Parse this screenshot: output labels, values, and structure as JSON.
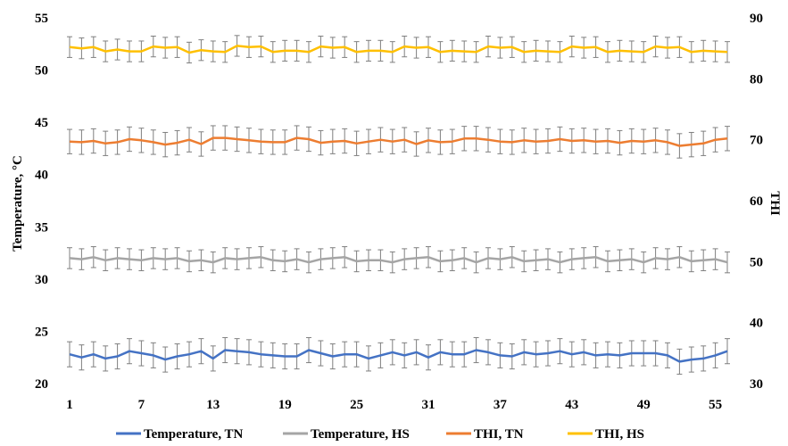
{
  "chart_data": {
    "type": "line",
    "title": "",
    "xlabel": "",
    "ylabel": "Temperature, °C",
    "y2label": "THI",
    "ylim": [
      20,
      55
    ],
    "y2lim": [
      30,
      90
    ],
    "yticks": [
      "20",
      "25",
      "30",
      "35",
      "40",
      "45",
      "50",
      "55"
    ],
    "y2ticks": [
      "30",
      "40",
      "50",
      "60",
      "70",
      "80",
      "90"
    ],
    "xticks": [
      "1",
      "7",
      "13",
      "19",
      "25",
      "31",
      "37",
      "43",
      "49",
      "55"
    ],
    "x": [
      1,
      2,
      3,
      4,
      5,
      6,
      7,
      8,
      9,
      10,
      11,
      12,
      13,
      14,
      15,
      16,
      17,
      18,
      19,
      20,
      21,
      22,
      23,
      24,
      25,
      26,
      27,
      28,
      29,
      30,
      31,
      32,
      33,
      34,
      35,
      36,
      37,
      38,
      39,
      40,
      41,
      42,
      43,
      44,
      45,
      46,
      47,
      48,
      49,
      50,
      51,
      52,
      53,
      54,
      55,
      56
    ],
    "grid": false,
    "legend_position": "bottom",
    "series": [
      {
        "name": "Temperature, TN",
        "axis": "left",
        "color": "#4472C4",
        "error": 1.2,
        "values": [
          22.8,
          22.5,
          22.8,
          22.4,
          22.6,
          23.1,
          22.9,
          22.7,
          22.3,
          22.6,
          22.8,
          23.1,
          22.4,
          23.2,
          23.1,
          23.0,
          22.8,
          22.7,
          22.6,
          22.6,
          23.2,
          22.9,
          22.6,
          22.8,
          22.8,
          22.4,
          22.7,
          23.0,
          22.7,
          23.0,
          22.5,
          23.0,
          22.8,
          22.8,
          23.2,
          23.0,
          22.7,
          22.6,
          23.0,
          22.8,
          22.9,
          23.1,
          22.8,
          23.0,
          22.7,
          22.8,
          22.7,
          22.9,
          22.9,
          22.9,
          22.7,
          22.1,
          22.3,
          22.4,
          22.7,
          23.1
        ]
      },
      {
        "name": "Temperature, HS",
        "axis": "left",
        "color": "#A5A5A5",
        "error": 1.0,
        "values": [
          32.0,
          31.9,
          32.1,
          31.8,
          32.0,
          31.9,
          31.8,
          32.0,
          31.9,
          32.0,
          31.7,
          31.8,
          31.6,
          32.0,
          31.9,
          32.0,
          32.1,
          31.8,
          31.7,
          31.9,
          31.6,
          31.9,
          32.0,
          32.1,
          31.7,
          31.8,
          31.8,
          31.6,
          31.9,
          32.0,
          32.1,
          31.7,
          31.8,
          32.0,
          31.6,
          32.0,
          31.9,
          32.1,
          31.7,
          31.8,
          31.9,
          31.6,
          31.9,
          32.0,
          32.1,
          31.7,
          31.8,
          31.9,
          31.6,
          32.0,
          31.9,
          32.1,
          31.7,
          31.8,
          31.9,
          31.6
        ]
      },
      {
        "name": "THI, TN",
        "axis": "right",
        "color": "#ED7D31",
        "error": 2.0,
        "values": [
          69.7,
          69.6,
          69.8,
          69.4,
          69.6,
          70.1,
          69.9,
          69.6,
          69.2,
          69.5,
          70.0,
          69.3,
          70.3,
          70.3,
          70.1,
          69.9,
          69.7,
          69.6,
          69.6,
          70.3,
          70.1,
          69.5,
          69.7,
          69.8,
          69.4,
          69.7,
          70.0,
          69.7,
          70.0,
          69.3,
          69.9,
          69.6,
          69.7,
          70.2,
          70.2,
          70.0,
          69.7,
          69.6,
          69.9,
          69.7,
          69.8,
          70.1,
          69.8,
          69.9,
          69.7,
          69.8,
          69.5,
          69.8,
          69.7,
          69.9,
          69.6,
          69.0,
          69.2,
          69.4,
          70.0,
          70.2
        ]
      },
      {
        "name": "THI, HS",
        "axis": "right",
        "color": "#FFC000",
        "error": 1.7,
        "values": [
          85.2,
          85.0,
          85.2,
          84.5,
          84.8,
          84.5,
          84.5,
          85.3,
          85.1,
          85.2,
          84.3,
          84.7,
          84.5,
          84.4,
          85.4,
          85.2,
          85.3,
          84.4,
          84.6,
          84.6,
          84.4,
          85.3,
          85.1,
          85.2,
          84.4,
          84.6,
          84.6,
          84.4,
          85.3,
          85.1,
          85.2,
          84.4,
          84.6,
          84.5,
          84.4,
          85.3,
          85.1,
          85.2,
          84.4,
          84.6,
          84.5,
          84.4,
          85.3,
          85.1,
          85.2,
          84.4,
          84.6,
          84.5,
          84.4,
          85.3,
          85.1,
          85.2,
          84.4,
          84.6,
          84.5,
          84.4
        ]
      }
    ]
  }
}
